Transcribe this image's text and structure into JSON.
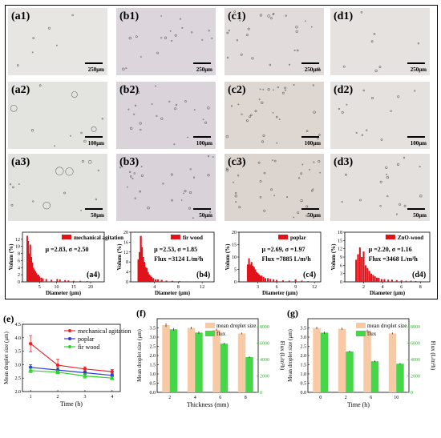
{
  "micrographs": [
    {
      "tag": "(a1)",
      "scale": "250μm",
      "bg": "#e7e6e2"
    },
    {
      "tag": "(b1)",
      "scale": "250μm",
      "bg": "#dcd6dc"
    },
    {
      "tag": "(c1)",
      "scale": "250μm",
      "bg": "#e1dcdb"
    },
    {
      "tag": "(d1)",
      "scale": "250μm",
      "bg": "#e6e2e0"
    },
    {
      "tag": "(a2)",
      "scale": "100μm",
      "bg": "#e3e3df"
    },
    {
      "tag": "(b2)",
      "scale": "100μm",
      "bg": "#dad3da"
    },
    {
      "tag": "(c2)",
      "scale": "100μm",
      "bg": "#ddd6d1"
    },
    {
      "tag": "(d2)",
      "scale": "100μm",
      "bg": "#e5e1df"
    },
    {
      "tag": "(a3)",
      "scale": "50μm",
      "bg": "#e2e3de"
    },
    {
      "tag": "(b3)",
      "scale": "50μm",
      "bg": "#d9d2d9"
    },
    {
      "tag": "(c3)",
      "scale": "50μm",
      "bg": "#dcd4cf"
    },
    {
      "tag": "(d3)",
      "scale": "50μm",
      "bg": "#e4e0dd"
    }
  ],
  "chart_data": [
    {
      "type": "bar",
      "panel": "(a4)",
      "legend": "mechanical agitation",
      "stats": "μ =2.83, σ =2.50",
      "flux": "",
      "xlabel": "Diameter (μm)",
      "ylabel": "Volum (%)",
      "xlim": [
        0,
        24
      ],
      "ylim": [
        0,
        14
      ],
      "xticks": [
        "5",
        "10",
        "15",
        "20"
      ],
      "yticks": [
        "0",
        "2",
        "4",
        "6",
        "8",
        "10",
        "12"
      ],
      "x": [
        1.4,
        1.7,
        2.0,
        2.3,
        2.6,
        2.9,
        3.2,
        3.5,
        3.8,
        4.1,
        4.4,
        4.7,
        5.0,
        5.5,
        6.0,
        7.0,
        8.5,
        10.2,
        11.0,
        12.5,
        13.5,
        15.0,
        17.0,
        19.0
      ],
      "values": [
        13.0,
        11.5,
        8.0,
        10.5,
        7.0,
        5.5,
        4.0,
        3.5,
        3.0,
        2.5,
        2.0,
        2.0,
        1.5,
        1.2,
        1.0,
        0.8,
        0.6,
        0.8,
        0.7,
        0.5,
        0.4,
        0.3,
        0.3,
        0.2
      ]
    },
    {
      "type": "bar",
      "panel": "(b4)",
      "legend": "fir wood",
      "stats": "μ =2.53, σ =1.85",
      "flux": "Flux =3124 L/m²h",
      "xlabel": "Diameter (μm)",
      "ylabel": "Volum (%)",
      "xlim": [
        0,
        14
      ],
      "ylim": [
        0,
        20
      ],
      "xticks": [
        "4",
        "8",
        "12"
      ],
      "yticks": [
        "0",
        "4",
        "8",
        "12",
        "16",
        "20"
      ],
      "x": [
        1.3,
        1.5,
        1.7,
        1.9,
        2.1,
        2.3,
        2.5,
        2.7,
        2.9,
        3.1,
        3.3,
        3.5,
        3.8,
        4.2,
        4.6,
        5.2,
        6.0,
        7.0,
        8.2,
        9.5,
        11.0
      ],
      "values": [
        9.0,
        12.0,
        18.5,
        14.0,
        10.0,
        8.0,
        6.0,
        5.5,
        4.0,
        3.0,
        2.5,
        2.0,
        1.5,
        1.0,
        1.0,
        0.8,
        0.5,
        0.4,
        0.3,
        0.2,
        0.2
      ]
    },
    {
      "type": "bar",
      "panel": "(c4)",
      "legend": "poplar",
      "stats": "μ =2.69, σ =1.97",
      "flux": "Flux =7885 L/m²h",
      "xlabel": "Diameter (μm)",
      "ylabel": "Volum (%)",
      "xlim": [
        0,
        13
      ],
      "ylim": [
        0,
        20
      ],
      "xticks": [
        "3",
        "6",
        "9",
        "12"
      ],
      "yticks": [
        "0",
        "5",
        "10",
        "15",
        "20"
      ],
      "x": [
        1.4,
        1.6,
        1.8,
        2.0,
        2.2,
        2.4,
        2.6,
        2.8,
        3.0,
        3.2,
        3.4,
        3.6,
        3.9,
        4.2,
        4.6,
        5.0,
        5.5,
        6.0,
        7.0,
        8.0,
        9.0,
        10.0,
        11.0
      ],
      "values": [
        7.0,
        9.5,
        7.0,
        8.0,
        6.5,
        6.0,
        5.0,
        4.0,
        3.5,
        3.0,
        2.5,
        2.5,
        2.0,
        1.5,
        1.5,
        1.2,
        1.0,
        0.8,
        0.6,
        0.5,
        1.0,
        0.5,
        0.3
      ]
    },
    {
      "type": "bar",
      "panel": "(d4)",
      "legend": "ZnO-wood",
      "stats": "μ =2.20, σ =1.16",
      "flux": "Flux =3468 L/m²h",
      "xlabel": "Diameter (μm)",
      "ylabel": "Volum (%)",
      "xlim": [
        0,
        9
      ],
      "ylim": [
        0,
        18
      ],
      "xticks": [
        "2",
        "4",
        "6",
        "8"
      ],
      "yticks": [
        "0",
        "3",
        "6",
        "9",
        "12",
        "15",
        "18"
      ],
      "x": [
        1.2,
        1.4,
        1.6,
        1.8,
        2.0,
        2.2,
        2.4,
        2.6,
        2.8,
        3.0,
        3.2,
        3.4,
        3.6,
        3.9,
        4.2,
        4.6,
        5.0,
        5.5,
        6.0,
        6.5,
        7.0,
        7.5,
        8.0
      ],
      "values": [
        8.0,
        10.0,
        12.5,
        9.0,
        11.0,
        6.0,
        5.0,
        4.0,
        3.0,
        2.5,
        2.0,
        1.5,
        1.5,
        1.0,
        1.0,
        0.8,
        0.8,
        0.6,
        0.5,
        0.4,
        0.4,
        0.3,
        0.2
      ]
    },
    {
      "type": "line",
      "panel": "(e)",
      "xlabel": "Time (h)",
      "ylabel": "Mean droplet size (μm)",
      "x": [
        1,
        2,
        3,
        4
      ],
      "xlim": [
        0.7,
        4.3
      ],
      "ylim": [
        2.0,
        4.5
      ],
      "xticks": [
        "1",
        "2",
        "3",
        "4"
      ],
      "yticks": [
        "2.0",
        "2.5",
        "3.0",
        "3.5",
        "4.0",
        "4.5"
      ],
      "series": [
        {
          "name": "mechanical agitation",
          "color": "#e8242b",
          "values": [
            3.78,
            2.98,
            2.84,
            2.74
          ],
          "err": [
            0.3,
            0.22,
            0.08,
            0.08
          ]
        },
        {
          "name": "poplar",
          "color": "#2d3ad1",
          "values": [
            2.9,
            2.8,
            2.7,
            2.6
          ],
          "err": [
            0.1,
            0.08,
            0.06,
            0.06
          ]
        },
        {
          "name": "fir wood",
          "color": "#2bd32b",
          "values": [
            2.78,
            2.72,
            2.58,
            2.5
          ],
          "err": [
            0.08,
            0.06,
            0.08,
            0.06
          ]
        }
      ]
    },
    {
      "type": "bar",
      "panel": "(f)",
      "xlabel": "Thickness (mm)",
      "ylabel": "Mean droplet size (μm)",
      "y2label": "Flux (L/m²h)",
      "categories": [
        "2",
        "4",
        "6",
        "8"
      ],
      "ylim": [
        0,
        4.0
      ],
      "y2lim": [
        0,
        9000
      ],
      "yticks": [
        "0.0",
        "0.5",
        "1.0",
        "1.5",
        "2.0",
        "2.5",
        "3.0",
        "3.5"
      ],
      "y2ticks": [
        "0",
        "2000",
        "4000",
        "6000",
        "8000"
      ],
      "series": [
        {
          "name": "mean droplet size",
          "color": "#f7c9a4",
          "values": [
            3.65,
            3.5,
            3.4,
            3.2
          ],
          "err": [
            0.1,
            0.06,
            0.06,
            0.05
          ]
        },
        {
          "name": "flux",
          "color": "#45d64a",
          "values": [
            7700,
            7300,
            5950,
            4300
          ],
          "err": [
            150,
            150,
            100,
            100
          ]
        }
      ]
    },
    {
      "type": "bar",
      "panel": "(g)",
      "xlabel": "Time (h)",
      "ylabel": "Mean droplet size (μm)",
      "y2label": "Flux (L/m²h)",
      "categories": [
        "0",
        "2",
        "6",
        "10"
      ],
      "ylim": [
        0,
        4.0
      ],
      "y2lim": [
        0,
        9000
      ],
      "yticks": [
        "0.0",
        "0.5",
        "1.0",
        "1.5",
        "2.0",
        "2.5",
        "3.0",
        "3.5"
      ],
      "y2ticks": [
        "0",
        "2000",
        "4000",
        "6000",
        "8000"
      ],
      "series": [
        {
          "name": "mean droplet size",
          "color": "#f7c9a4",
          "values": [
            3.5,
            3.45,
            3.35,
            3.2
          ],
          "err": [
            0.06,
            0.06,
            0.06,
            0.05
          ]
        },
        {
          "name": "flux",
          "color": "#45d64a",
          "values": [
            7300,
            5000,
            3800,
            3500
          ],
          "err": [
            150,
            100,
            100,
            100
          ]
        }
      ]
    }
  ]
}
